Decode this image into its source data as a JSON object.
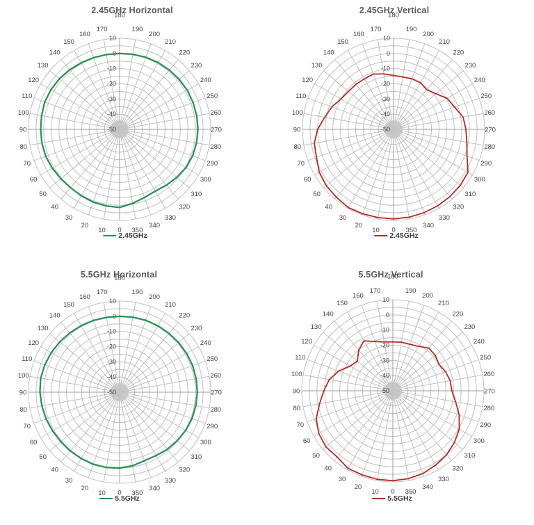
{
  "accent_colors": {
    "green_series": "#2A9254",
    "red_series": "#B42B20",
    "grid": "#BFBFBF",
    "axis": "#9E9E9E",
    "tick_text": "#404040",
    "title_text": "#595959"
  },
  "chart_data": [
    {
      "type": "radar",
      "title": "2.45GHz Horizontal",
      "angle_unit": "deg",
      "angle_zero_position": "bottom",
      "angle_direction": "counterclockwise",
      "angle_ticks": [
        0,
        10,
        20,
        30,
        40,
        50,
        60,
        70,
        80,
        90,
        100,
        110,
        120,
        130,
        140,
        150,
        160,
        170,
        180,
        190,
        200,
        210,
        220,
        230,
        240,
        250,
        260,
        270,
        280,
        290,
        300,
        310,
        320,
        330,
        340,
        350
      ],
      "radial_axis": {
        "min": -50,
        "max": 10,
        "ring_step_db": 5,
        "tick_labels": [
          10,
          0,
          -10,
          -20,
          -30,
          -40,
          -50
        ]
      },
      "grid": true,
      "legend": {
        "position": "bottom",
        "entries": [
          {
            "label": "2.45GHz",
            "color": "#2A9254"
          }
        ]
      },
      "series": [
        {
          "name": "2.45GHz",
          "color": "#2A9254",
          "width": 2.3,
          "angles_deg": [
            0,
            10,
            20,
            30,
            40,
            50,
            60,
            70,
            80,
            90,
            100,
            110,
            120,
            130,
            140,
            150,
            160,
            170,
            180,
            190,
            200,
            210,
            220,
            230,
            240,
            250,
            260,
            270,
            280,
            290,
            300,
            310,
            320,
            330,
            340,
            350
          ],
          "values_db": [
            1.5,
            1.2,
            1.0,
            0.5,
            0.2,
            0.5,
            1.2,
            1.8,
            2.0,
            2.0,
            2.2,
            2.5,
            2.2,
            1.8,
            1.2,
            0.6,
            0.2,
            0.0,
            0.0,
            0.2,
            0.5,
            0.8,
            1.0,
            1.2,
            1.5,
            1.5,
            1.6,
            1.6,
            1.5,
            1.2,
            0.5,
            -0.8,
            -2.0,
            -3.0,
            -2.2,
            -0.5
          ]
        }
      ]
    },
    {
      "type": "radar",
      "title": "2.45GHz Vertical",
      "angle_unit": "deg",
      "angle_zero_position": "bottom",
      "angle_direction": "counterclockwise",
      "angle_ticks": [
        0,
        10,
        20,
        30,
        40,
        50,
        60,
        70,
        80,
        90,
        100,
        110,
        120,
        130,
        140,
        150,
        160,
        170,
        180,
        190,
        200,
        210,
        220,
        230,
        240,
        250,
        260,
        270,
        280,
        290,
        300,
        310,
        320,
        330,
        340,
        350
      ],
      "radial_axis": {
        "min": -50,
        "max": 10,
        "ring_step_db": 5,
        "tick_labels": [
          10,
          0,
          -10,
          -20,
          -30,
          -40,
          -50
        ]
      },
      "grid": true,
      "legend": {
        "position": "bottom",
        "entries": [
          {
            "label": "2.45GHz",
            "color": "#B42B20"
          }
        ]
      },
      "series": [
        {
          "name": "2.45GHz",
          "color": "#B42B20",
          "width": 1.8,
          "angles_deg": [
            0,
            10,
            20,
            30,
            40,
            50,
            60,
            70,
            80,
            90,
            100,
            110,
            120,
            130,
            140,
            150,
            160,
            170,
            180,
            190,
            200,
            210,
            220,
            230,
            240,
            250,
            260,
            270,
            280,
            290,
            300,
            310,
            320,
            330,
            340,
            350
          ],
          "values_db": [
            9.0,
            9.0,
            9.2,
            9.5,
            8.5,
            7.8,
            6.5,
            4.0,
            3.0,
            0.0,
            -4.0,
            -6.7,
            -10.0,
            -11.2,
            -11.4,
            -11.6,
            -11.2,
            -13.0,
            -14.5,
            -15.0,
            -14.5,
            -14.5,
            -16.0,
            -13.5,
            -9.2,
            -7.2,
            -3.5,
            -2.3,
            -1.0,
            1.5,
            6.6,
            7.4,
            7.8,
            8.2,
            8.5,
            8.8
          ]
        }
      ]
    },
    {
      "type": "radar",
      "title": "5.5GHz Horizontal",
      "angle_unit": "deg",
      "angle_zero_position": "bottom",
      "angle_direction": "counterclockwise",
      "angle_ticks": [
        0,
        10,
        20,
        30,
        40,
        50,
        60,
        70,
        80,
        90,
        100,
        110,
        120,
        130,
        140,
        150,
        160,
        170,
        180,
        190,
        200,
        210,
        220,
        230,
        240,
        250,
        260,
        270,
        280,
        290,
        300,
        310,
        320,
        330,
        340,
        350
      ],
      "radial_axis": {
        "min": -50,
        "max": 10,
        "ring_step_db": 5,
        "tick_labels": [
          10,
          0,
          -10,
          -20,
          -30,
          -40,
          -50
        ]
      },
      "grid": true,
      "legend": {
        "position": "bottom",
        "entries": [
          {
            "label": "5.5GHz",
            "color": "#2A9254"
          }
        ]
      },
      "series": [
        {
          "name": "5.5GHz",
          "color": "#2A9254",
          "width": 2.3,
          "angles_deg": [
            0,
            10,
            20,
            30,
            40,
            50,
            60,
            70,
            80,
            90,
            100,
            110,
            120,
            130,
            140,
            150,
            160,
            170,
            180,
            190,
            200,
            210,
            220,
            230,
            240,
            250,
            260,
            270,
            280,
            290,
            300,
            310,
            320,
            330,
            340,
            350
          ],
          "values_db": [
            0.0,
            0.3,
            0.6,
            0.5,
            0.5,
            0.6,
            1.0,
            1.5,
            2.0,
            2.5,
            2.8,
            2.5,
            2.0,
            1.5,
            1.0,
            0.6,
            0.3,
            0.0,
            0.0,
            0.2,
            0.4,
            0.5,
            0.6,
            0.8,
            1.0,
            1.2,
            1.2,
            1.2,
            1.0,
            0.8,
            0.3,
            -0.4,
            -1.0,
            -1.8,
            -2.0,
            -0.8
          ]
        }
      ]
    },
    {
      "type": "radar",
      "title": "5.5GHz Vertical",
      "angle_unit": "deg",
      "angle_zero_position": "bottom",
      "angle_direction": "counterclockwise",
      "angle_ticks": [
        0,
        10,
        20,
        30,
        40,
        50,
        60,
        70,
        80,
        90,
        100,
        110,
        120,
        130,
        140,
        150,
        160,
        170,
        180,
        190,
        200,
        210,
        220,
        230,
        240,
        250,
        260,
        270,
        280,
        290,
        300,
        310,
        320,
        330,
        340,
        350
      ],
      "radial_axis": {
        "min": -50,
        "max": 10,
        "ring_step_db": 5,
        "tick_labels": [
          10,
          0,
          -10,
          -20,
          -30,
          -40,
          -50
        ]
      },
      "grid": true,
      "legend": {
        "position": "bottom",
        "entries": [
          {
            "label": "5.5GHz",
            "color": "#B42B20"
          }
        ]
      },
      "series": [
        {
          "name": "5.5GHz",
          "color": "#B42B20",
          "width": 1.8,
          "angles_deg": [
            0,
            10,
            20,
            30,
            40,
            50,
            60,
            70,
            80,
            90,
            100,
            110,
            120,
            130,
            140,
            150,
            160,
            170,
            180,
            190,
            200,
            210,
            220,
            230,
            240,
            250,
            260,
            270,
            280,
            290,
            300,
            310,
            320,
            330,
            340,
            350
          ],
          "values_db": [
            9.2,
            9.2,
            9.0,
            9.0,
            7.0,
            7.5,
            6.3,
            3.7,
            -1.0,
            -4.5,
            -7.5,
            -12.0,
            -17.5,
            -19.5,
            -15.0,
            -12.0,
            -15.5,
            -17.3,
            -17.8,
            -17.5,
            -17.4,
            -16.2,
            -13.2,
            -13.6,
            -15.0,
            -13.1,
            -11.7,
            -11.1,
            -8.0,
            -3.5,
            0.5,
            3.0,
            5.0,
            6.5,
            8.0,
            8.8
          ]
        }
      ]
    }
  ]
}
